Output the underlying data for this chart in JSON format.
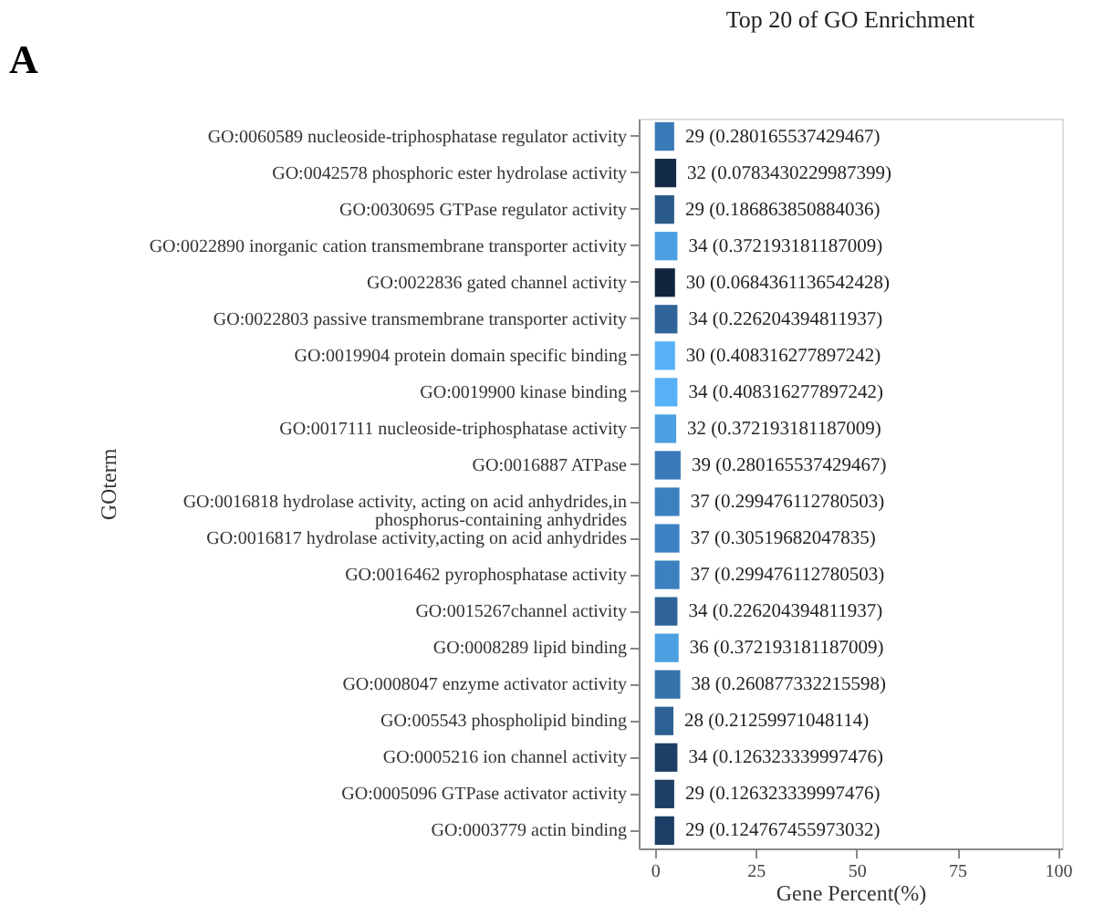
{
  "chart_data": {
    "type": "bar",
    "orientation": "horizontal",
    "title": "Top 20 of GO Enrichment",
    "xlabel": "Gene Percent(%)",
    "ylabel": "GOterm",
    "categories": [
      "GO:0060589 nucleoside-triphosphatase regulator activity",
      "GO:0042578 phosphoric ester hydrolase activity",
      "GO:0030695 GTPase regulator activity",
      "GO:0022890 inorganic cation transmembrane transporter activity",
      "GO:0022836 gated channel activity",
      "GO:0022803 passive transmembrane transporter activity",
      "GO:0019904 protein domain specific binding",
      "GO:0019900 kinase binding",
      "GO:0017111 nucleoside-triphosphatase activity",
      "GO:0016887 ATPase",
      "GO:0016818 hydrolase activity, acting on acid anhydrides,in phosphorus-containing anhydrides",
      "GO:0016817 hydrolase activity,acting on acid anhydrides",
      "GO:0016462  pyrophosphatase activity",
      "GO:0015267channel activity",
      "GO:0008289 lipid binding",
      "GO:0008047  enzyme activator activity",
      "GO:005543 phospholipid binding",
      "GO:0005216 ion channel activity",
      "GO:0005096 GTPase activator activity",
      "GO:0003779  actin binding"
    ],
    "values": [
      4.8,
      5.3,
      4.8,
      5.6,
      5.0,
      5.6,
      5.0,
      5.6,
      5.3,
      6.4,
      6.1,
      6.1,
      6.1,
      5.6,
      5.9,
      6.3,
      4.6,
      5.6,
      4.8,
      4.8
    ],
    "colors": [
      "#3a7ab8",
      "#132b47",
      "#2a5a8a",
      "#4aa0e0",
      "#10263f",
      "#2f6498",
      "#56b1f7",
      "#56b1f7",
      "#4aa0e0",
      "#3a7ab8",
      "#3c80c0",
      "#3d82c3",
      "#3c80c0",
      "#2f6498",
      "#4aa0e0",
      "#3572aa",
      "#2d6093",
      "#1d3f66",
      "#1d3f66",
      "#1d3e65"
    ],
    "annotations": [
      "A",
      {
        "text": "29 (0.280165537429467)",
        "x": 4.8,
        "y": "GO:0060589 nucleoside-triphosphatase regulator activity"
      },
      {
        "text": "32 (0.0783430229987399)",
        "x": 5.3,
        "y": "GO:0042578 phosphoric ester hydrolase activity"
      },
      {
        "text": "29 (0.186863850884036)",
        "x": 4.8,
        "y": "GO:0030695 GTPase regulator activity"
      },
      {
        "text": "34 (0.372193181187009)",
        "x": 5.6,
        "y": "GO:0022890 inorganic cation transmembrane transporter activity"
      },
      {
        "text": "30 (0.0684361136542428)",
        "x": 5.0,
        "y": "GO:0022836 gated channel activity"
      },
      {
        "text": "34 (0.226204394811937)",
        "x": 5.6,
        "y": "GO:0022803 passive transmembrane transporter activity"
      },
      {
        "text": "30 (0.408316277897242)",
        "x": 5.0,
        "y": "GO:0019904 protein domain specific binding"
      },
      {
        "text": "34 (0.408316277897242)",
        "x": 5.6,
        "y": "GO:0019900 kinase binding"
      },
      {
        "text": "32 (0.372193181187009)",
        "x": 5.3,
        "y": "GO:0017111 nucleoside-triphosphatase activity"
      },
      {
        "text": "39 (0.280165537429467)",
        "x": 6.4,
        "y": "GO:0016887 ATPase"
      },
      {
        "text": "37 (0.299476112780503)",
        "x": 6.1,
        "y": "GO:0016818 hydrolase activity, acting on acid anhydrides,in phosphorus-containing anhydrides"
      },
      {
        "text": "37 (0.30519682047835)",
        "x": 6.1,
        "y": "GO:0016817 hydrolase activity,acting on acid anhydrides"
      },
      {
        "text": "37 (0.299476112780503)",
        "x": 6.1,
        "y": "GO:0016462  pyrophosphatase activity"
      },
      {
        "text": "34 (0.226204394811937)",
        "x": 5.6,
        "y": "GO:0015267channel activity"
      },
      {
        "text": "36 (0.372193181187009)",
        "x": 5.9,
        "y": "GO:0008289 lipid binding"
      },
      {
        "text": "38 (0.260877332215598)",
        "x": 6.3,
        "y": "GO:0008047  enzyme activator activity"
      },
      {
        "text": "28 (0.21259971048114)",
        "x": 4.6,
        "y": "GO:005543 phospholipid binding"
      },
      {
        "text": "34 (0.126323339997476)",
        "x": 5.6,
        "y": "GO:0005216 ion channel activity"
      },
      {
        "text": "29 (0.126323339997476)",
        "x": 4.8,
        "y": "GO:0005096 GTPase activator activity"
      },
      {
        "text": "29 (0.124767455973032)",
        "x": 4.8,
        "y": "GO:0003779  actin binding"
      }
    ],
    "xlim": [
      -4,
      101
    ],
    "xticks": [
      0,
      25,
      50,
      75,
      100
    ],
    "grid": false
  }
}
